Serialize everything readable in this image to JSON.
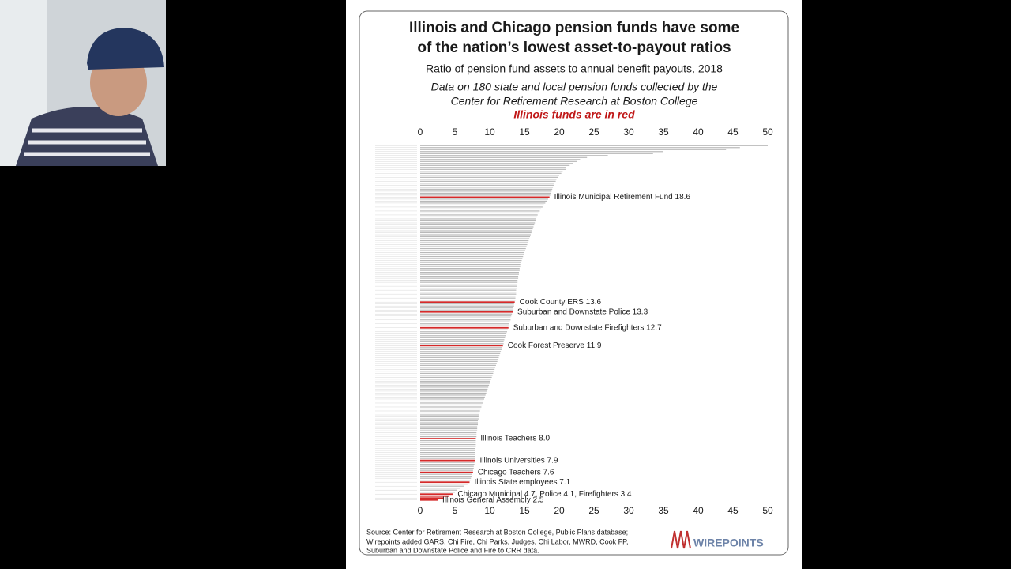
{
  "chart_data": {
    "type": "barh",
    "title": [
      "Illinois and Chicago pension funds have some",
      "of the nation’s lowest asset-to-payout ratios"
    ],
    "subtitle": "Ratio of pension fund assets to annual benefit payouts, 2018",
    "notes": [
      "Data on 180 state and local pension funds collected by the",
      "Center for Retirement Research at Boston College"
    ],
    "highlight_note": "Illinois funds are in red",
    "source": [
      "Source: Center for Retirement Research at Boston College, Public Plans database;",
      "Wirepoints added GARS, Chi Fire, Chi Parks, Judges, Chi Labor, MWRD, Cook FP,",
      "Suburban and Downstate Police and Fire to CRR data."
    ],
    "logo": "WIREPOINTS",
    "xlim": [
      0,
      50
    ],
    "xticks": [
      0,
      5,
      10,
      15,
      20,
      25,
      30,
      35,
      40,
      45,
      50
    ],
    "values": [
      50,
      46,
      44,
      35,
      33.5,
      27,
      24,
      23,
      22.5,
      22,
      21.5,
      21,
      21,
      20.5,
      20.3,
      20,
      19.8,
      19.6,
      19.5,
      19.3,
      19.2,
      19.1,
      19,
      18.9,
      18.8,
      18.7,
      18.6,
      18.4,
      18.2,
      18.0,
      17.8,
      17.6,
      17.4,
      17.2,
      17.0,
      16.9,
      16.8,
      16.7,
      16.6,
      16.5,
      16.4,
      16.3,
      16.2,
      16.1,
      16.0,
      15.9,
      15.8,
      15.7,
      15.6,
      15.5,
      15.4,
      15.3,
      15.2,
      15.1,
      15.0,
      14.9,
      14.8,
      14.7,
      14.6,
      14.5,
      14.4,
      14.4,
      14.3,
      14.3,
      14.2,
      14.2,
      14.1,
      14.1,
      14.0,
      14.0,
      13.9,
      13.9,
      13.9,
      13.8,
      13.8,
      13.8,
      13.7,
      13.7,
      13.7,
      13.6,
      13.5,
      13.5,
      13.4,
      13.4,
      13.3,
      13.2,
      13.1,
      13.0,
      13.0,
      12.9,
      12.8,
      12.8,
      12.7,
      12.6,
      12.5,
      12.4,
      12.3,
      12.2,
      12.1,
      12.0,
      12.0,
      11.9,
      11.8,
      11.7,
      11.6,
      11.5,
      11.4,
      11.3,
      11.2,
      11.1,
      11.0,
      10.9,
      10.8,
      10.7,
      10.6,
      10.5,
      10.4,
      10.3,
      10.2,
      10.1,
      10.0,
      9.9,
      9.8,
      9.7,
      9.6,
      9.5,
      9.4,
      9.3,
      9.2,
      9.1,
      9.0,
      8.9,
      8.8,
      8.7,
      8.6,
      8.5,
      8.5,
      8.4,
      8.4,
      8.3,
      8.3,
      8.3,
      8.2,
      8.2,
      8.2,
      8.1,
      8.1,
      8.1,
      8.0,
      8.0,
      8.0,
      8.0,
      8.0,
      7.9,
      7.9,
      7.9,
      7.9,
      7.9,
      7.9,
      7.9,
      7.8,
      7.8,
      7.7,
      7.7,
      7.6,
      7.6,
      7.5,
      7.4,
      7.3,
      7.2,
      7.1,
      6.8,
      6.3,
      5.8,
      5.3,
      5.0,
      4.7,
      4.1,
      3.4,
      2.5
    ],
    "value_labels": [
      null,
      null,
      null,
      null,
      null,
      null,
      null,
      null,
      null,
      null,
      null,
      null,
      null,
      null,
      null,
      null,
      null,
      null,
      null,
      null,
      null,
      null,
      null,
      null,
      null,
      null,
      "Illinois Municipal Retirement Fund  18.6",
      null,
      null,
      null,
      null,
      null,
      null,
      null,
      null,
      null,
      null,
      null,
      null,
      null,
      null,
      null,
      null,
      null,
      null,
      null,
      null,
      null,
      null,
      null,
      null,
      null,
      null,
      null,
      null,
      null,
      null,
      null,
      null,
      null,
      null,
      null,
      null,
      null,
      null,
      null,
      null,
      null,
      null,
      null,
      null,
      null,
      null,
      null,
      null,
      null,
      null,
      null,
      null,
      "Cook County ERS  13.6",
      null,
      null,
      null,
      null,
      "Suburban and Downstate Police  13.3",
      null,
      null,
      null,
      null,
      null,
      null,
      null,
      "Suburban and Downstate Firefighters  12.7",
      null,
      null,
      null,
      null,
      null,
      null,
      null,
      null,
      "Cook Forest Preserve  11.9",
      null,
      null,
      null,
      null,
      null,
      null,
      null,
      null,
      null,
      null,
      null,
      null,
      null,
      null,
      null,
      null,
      null,
      null,
      null,
      null,
      null,
      null,
      null,
      null,
      null,
      null,
      null,
      null,
      null,
      null,
      null,
      null,
      null,
      null,
      null,
      null,
      null,
      null,
      null,
      null,
      null,
      null,
      null,
      null,
      null,
      null,
      "Illinois Teachers  8.0",
      null,
      null,
      null,
      null,
      null,
      null,
      null,
      null,
      null,
      null,
      "Illinois Universities  7.9",
      null,
      null,
      null,
      null,
      null,
      "Chicago Teachers  7.6",
      null,
      null,
      null,
      null,
      "Illinois State employees  7.1",
      null,
      null,
      null,
      null,
      null,
      "Chicago Municipal 4.7, Police  4.1, Firefighters  3.4",
      null,
      null,
      "Illinois General Assembly  2.5"
    ],
    "colors": [
      "#b8b8b8",
      "#b8b8b8",
      "#b8b8b8",
      "#b8b8b8",
      "#b8b8b8",
      "#b8b8b8",
      "#b8b8b8",
      "#b8b8b8",
      "#b8b8b8",
      "#b8b8b8",
      "#b8b8b8",
      "#b8b8b8",
      "#b8b8b8",
      "#b8b8b8",
      "#b8b8b8",
      "#b8b8b8",
      "#b8b8b8",
      "#b8b8b8",
      "#b8b8b8",
      "#b8b8b8",
      "#b8b8b8",
      "#b8b8b8",
      "#b8b8b8",
      "#b8b8b8",
      "#b8b8b8",
      "#b8b8b8",
      "#d42a2a",
      "#b8b8b8",
      "#b8b8b8",
      "#b8b8b8",
      "#b8b8b8",
      "#b8b8b8",
      "#b8b8b8",
      "#b8b8b8",
      "#b8b8b8",
      "#b8b8b8",
      "#b8b8b8",
      "#b8b8b8",
      "#b8b8b8",
      "#b8b8b8",
      "#b8b8b8",
      "#b8b8b8",
      "#b8b8b8",
      "#b8b8b8",
      "#b8b8b8",
      "#b8b8b8",
      "#b8b8b8",
      "#b8b8b8",
      "#b8b8b8",
      "#b8b8b8",
      "#b8b8b8",
      "#b8b8b8",
      "#b8b8b8",
      "#b8b8b8",
      "#b8b8b8",
      "#b8b8b8",
      "#b8b8b8",
      "#b8b8b8",
      "#b8b8b8",
      "#b8b8b8",
      "#b8b8b8",
      "#b8b8b8",
      "#b8b8b8",
      "#b8b8b8",
      "#b8b8b8",
      "#b8b8b8",
      "#b8b8b8",
      "#b8b8b8",
      "#b8b8b8",
      "#b8b8b8",
      "#b8b8b8",
      "#b8b8b8",
      "#b8b8b8",
      "#b8b8b8",
      "#b8b8b8",
      "#b8b8b8",
      "#b8b8b8",
      "#b8b8b8",
      "#b8b8b8",
      "#d42a2a",
      "#b8b8b8",
      "#b8b8b8",
      "#b8b8b8",
      "#b8b8b8",
      "#d42a2a",
      "#b8b8b8",
      "#b8b8b8",
      "#b8b8b8",
      "#b8b8b8",
      "#b8b8b8",
      "#b8b8b8",
      "#b8b8b8",
      "#d42a2a",
      "#b8b8b8",
      "#b8b8b8",
      "#b8b8b8",
      "#b8b8b8",
      "#b8b8b8",
      "#b8b8b8",
      "#b8b8b8",
      "#b8b8b8",
      "#d42a2a",
      "#b8b8b8",
      "#b8b8b8",
      "#b8b8b8",
      "#b8b8b8",
      "#b8b8b8",
      "#b8b8b8",
      "#b8b8b8",
      "#b8b8b8",
      "#b8b8b8",
      "#b8b8b8",
      "#b8b8b8",
      "#b8b8b8",
      "#b8b8b8",
      "#b8b8b8",
      "#b8b8b8",
      "#b8b8b8",
      "#b8b8b8",
      "#b8b8b8",
      "#b8b8b8",
      "#b8b8b8",
      "#b8b8b8",
      "#b8b8b8",
      "#b8b8b8",
      "#b8b8b8",
      "#b8b8b8",
      "#b8b8b8",
      "#b8b8b8",
      "#b8b8b8",
      "#b8b8b8",
      "#b8b8b8",
      "#b8b8b8",
      "#b8b8b8",
      "#b8b8b8",
      "#b8b8b8",
      "#b8b8b8",
      "#b8b8b8",
      "#b8b8b8",
      "#b8b8b8",
      "#b8b8b8",
      "#b8b8b8",
      "#b8b8b8",
      "#b8b8b8",
      "#b8b8b8",
      "#b8b8b8",
      "#b8b8b8",
      "#b8b8b8",
      "#d42a2a",
      "#b8b8b8",
      "#b8b8b8",
      "#b8b8b8",
      "#b8b8b8",
      "#b8b8b8",
      "#b8b8b8",
      "#b8b8b8",
      "#b8b8b8",
      "#b8b8b8",
      "#b8b8b8",
      "#d42a2a",
      "#b8b8b8",
      "#b8b8b8",
      "#b8b8b8",
      "#b8b8b8",
      "#b8b8b8",
      "#d42a2a",
      "#b8b8b8",
      "#b8b8b8",
      "#b8b8b8",
      "#b8b8b8",
      "#d42a2a",
      "#b8b8b8",
      "#b8b8b8",
      "#b8b8b8",
      "#b8b8b8",
      "#b8b8b8",
      "#d42a2a",
      "#d42a2a",
      "#d42a2a",
      "#d42a2a"
    ],
    "title_color": "#1a1a1a",
    "highlight_color": "#c01818"
  }
}
